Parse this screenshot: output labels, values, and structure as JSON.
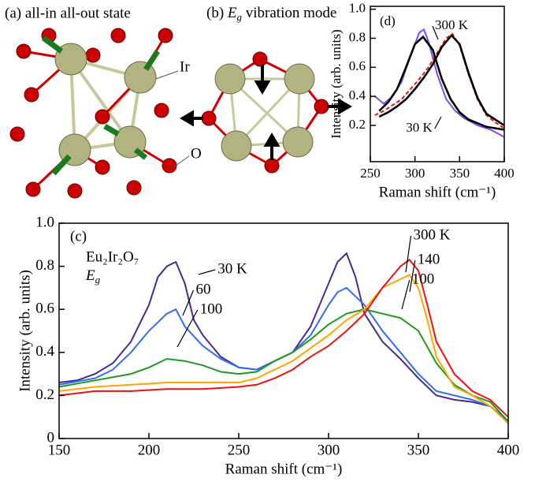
{
  "panels": [
    {
      "label": "(a) all-in all-out state",
      "ion_labels": [
        "Ir",
        "O"
      ]
    },
    {
      "label": "(b)",
      "symbol": "E",
      "subscript": "g",
      "text": "vibration mode"
    }
  ],
  "chart_data": [
    {
      "type": "line",
      "label": "(c)",
      "sample": "Eu₂Ir₂O₇",
      "mode": {
        "symbol": "E",
        "subscript": "g"
      },
      "x_label": "Raman shift (cm⁻¹)",
      "y_label": "Intensity (arb. units)",
      "xlim": [
        150,
        400
      ],
      "ylim": [
        0,
        1.0
      ],
      "xticks": [
        150,
        200,
        250,
        300,
        350,
        400
      ],
      "yticks": [
        0,
        0.2,
        0.4,
        0.6,
        0.8,
        {
          "value": 1.0,
          "label": "1.0"
        }
      ],
      "annotations": [
        "100"
      ],
      "series": [
        {
          "name": "30 K",
          "color": "#4b2a8c",
          "x": [
            150,
            160,
            170,
            180,
            190,
            200,
            205,
            210,
            215,
            220,
            225,
            230,
            235,
            240,
            250,
            260,
            270,
            280,
            290,
            300,
            305,
            310,
            315,
            320,
            330,
            340,
            350,
            360,
            370,
            380,
            390,
            400
          ],
          "values": [
            0.26,
            0.27,
            0.3,
            0.35,
            0.45,
            0.62,
            0.75,
            0.8,
            0.82,
            0.72,
            0.55,
            0.48,
            0.43,
            0.38,
            0.33,
            0.32,
            0.36,
            0.4,
            0.52,
            0.72,
            0.82,
            0.86,
            0.75,
            0.58,
            0.45,
            0.37,
            0.28,
            0.2,
            0.18,
            0.17,
            0.15,
            0.08
          ]
        },
        {
          "name": "60",
          "color": "#2f6ff0",
          "x": [
            150,
            170,
            180,
            190,
            200,
            210,
            215,
            220,
            230,
            240,
            250,
            260,
            270,
            280,
            290,
            300,
            305,
            310,
            320,
            330,
            340,
            350,
            360,
            370,
            380,
            390,
            400
          ],
          "values": [
            0.25,
            0.28,
            0.32,
            0.4,
            0.5,
            0.58,
            0.6,
            0.52,
            0.43,
            0.37,
            0.33,
            0.32,
            0.36,
            0.4,
            0.48,
            0.62,
            0.68,
            0.7,
            0.62,
            0.5,
            0.4,
            0.3,
            0.22,
            0.2,
            0.18,
            0.15,
            0.08
          ]
        },
        {
          "name": "100",
          "color": "#1f9a1f",
          "x": [
            150,
            170,
            190,
            200,
            210,
            220,
            230,
            240,
            250,
            260,
            270,
            280,
            290,
            300,
            310,
            320,
            330,
            340,
            350,
            360,
            370,
            380,
            390,
            400
          ],
          "values": [
            0.24,
            0.27,
            0.3,
            0.33,
            0.37,
            0.36,
            0.34,
            0.31,
            0.3,
            0.31,
            0.36,
            0.4,
            0.46,
            0.53,
            0.58,
            0.6,
            0.58,
            0.56,
            0.5,
            0.35,
            0.25,
            0.2,
            0.17,
            0.08
          ]
        },
        {
          "name": "140",
          "color": "#ffa500",
          "x": [
            150,
            170,
            190,
            210,
            230,
            250,
            260,
            270,
            280,
            290,
            300,
            310,
            320,
            330,
            340,
            345,
            350,
            355,
            360,
            370,
            380,
            390,
            400
          ],
          "values": [
            0.22,
            0.24,
            0.25,
            0.26,
            0.26,
            0.26,
            0.28,
            0.32,
            0.36,
            0.42,
            0.48,
            0.55,
            0.6,
            0.7,
            0.74,
            0.76,
            0.7,
            0.55,
            0.38,
            0.24,
            0.2,
            0.15,
            0.07
          ]
        },
        {
          "name": "300 K",
          "color": "#ee1111",
          "x": [
            150,
            170,
            190,
            210,
            230,
            250,
            260,
            270,
            280,
            290,
            300,
            310,
            320,
            330,
            340,
            345,
            350,
            355,
            360,
            370,
            380,
            390,
            400
          ],
          "values": [
            0.2,
            0.22,
            0.22,
            0.23,
            0.23,
            0.24,
            0.25,
            0.28,
            0.32,
            0.38,
            0.43,
            0.5,
            0.58,
            0.7,
            0.8,
            0.83,
            0.78,
            0.62,
            0.45,
            0.3,
            0.22,
            0.18,
            0.1
          ]
        }
      ]
    },
    {
      "type": "line",
      "label": "(d)",
      "x_label": "Raman shift (cm⁻¹)",
      "y_label": "Intensity (arb. units)",
      "xlim": [
        250,
        400
      ],
      "ylim": [
        -0.05,
        1.02
      ],
      "xticks": [
        250,
        300,
        350,
        400
      ],
      "yticks": [
        0.2,
        0.4,
        0.6,
        0.8,
        {
          "value": 1.0,
          "label": "1.0"
        }
      ],
      "series": [
        {
          "name": "30 K",
          "color": "#7a4df0",
          "style": "solid",
          "x": [
            255,
            265,
            275,
            285,
            295,
            305,
            310,
            315,
            325,
            335,
            345,
            355,
            370,
            385,
            400
          ],
          "values": [
            0.4,
            0.35,
            0.4,
            0.5,
            0.68,
            0.84,
            0.86,
            0.78,
            0.55,
            0.38,
            0.3,
            0.25,
            0.2,
            0.17,
            0.12
          ]
        },
        {
          "name": "300 K",
          "color": "#ee1111",
          "style": "dashed",
          "x": [
            255,
            265,
            275,
            285,
            295,
            305,
            315,
            325,
            335,
            342,
            350,
            360,
            370,
            380,
            390,
            400
          ],
          "values": [
            0.27,
            0.3,
            0.34,
            0.38,
            0.45,
            0.52,
            0.6,
            0.7,
            0.8,
            0.83,
            0.75,
            0.55,
            0.38,
            0.27,
            0.22,
            0.18
          ]
        },
        {
          "color": "#000000",
          "style": "solid",
          "x": [
            260,
            270,
            280,
            290,
            300,
            309,
            320,
            330,
            340,
            350,
            360,
            380,
            400
          ],
          "values": [
            0.3,
            0.36,
            0.45,
            0.6,
            0.76,
            0.81,
            0.72,
            0.52,
            0.38,
            0.29,
            0.24,
            0.19,
            0.17
          ]
        },
        {
          "color": "#000000",
          "style": "solid",
          "x": [
            260,
            270,
            280,
            290,
            300,
            310,
            320,
            330,
            341,
            350,
            360,
            370,
            380,
            400
          ],
          "values": [
            0.26,
            0.29,
            0.33,
            0.38,
            0.45,
            0.53,
            0.62,
            0.74,
            0.82,
            0.76,
            0.56,
            0.39,
            0.28,
            0.2
          ]
        }
      ]
    }
  ]
}
